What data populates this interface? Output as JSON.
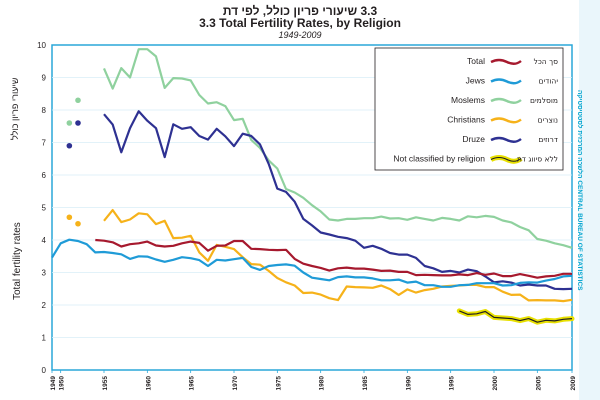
{
  "titles": {
    "hebrew": "3.3 שיעורי פריון כולל, לפי דת",
    "english": "3.3 Total Fertility Rates, by Religion",
    "years": "1949-2009"
  },
  "axis": {
    "ylabel_en": "Total fertility rates",
    "ylabel_he": "שיעורי פריון כולל"
  },
  "side_label": "הלשכה המרכזית לסטטיסטיקה CENTRAL BUREAU OF STATISTICS",
  "colors": {
    "Total": "#a6192e",
    "Jews": "#1f9bd7",
    "Moslems": "#8fd19e",
    "Christians": "#f6b21a",
    "Druze": "#2e3192",
    "Unclassified": "#e8e000",
    "frame": "#2aa7d9",
    "legend_border": "#231f20"
  },
  "legend_items": [
    {
      "en": "Total",
      "he": "סך הכל",
      "key": "Total"
    },
    {
      "en": "Jews",
      "he": "יהודים",
      "key": "Jews"
    },
    {
      "en": "Moslems",
      "he": "מוסלמים",
      "key": "Moslems"
    },
    {
      "en": "Christians",
      "he": "נוצרים",
      "key": "Christians"
    },
    {
      "en": "Druze",
      "he": "דרוזים",
      "key": "Druze"
    },
    {
      "en": "Not classified by religion",
      "he": "ללא סיווג דת",
      "key": "Unclassified"
    }
  ],
  "chart_data": {
    "type": "line",
    "title": "3.3 Total Fertility Rates, by Religion",
    "subtitle": "1949-2009",
    "xlabel": "",
    "ylabel": "Total fertility rates",
    "xlim": [
      1949,
      2009
    ],
    "ylim": [
      0,
      10
    ],
    "yticks": [
      0,
      1,
      2,
      3,
      4,
      5,
      6,
      7,
      8,
      9,
      10
    ],
    "xtick_labels": [
      "1949",
      "1950",
      "1955",
      "1960",
      "1965",
      "1970",
      "1975",
      "1980",
      "1985",
      "1990",
      "1995",
      "2000",
      "2005",
      "2009"
    ],
    "grid": true,
    "legend_position": "top-right",
    "series": [
      {
        "name": "Total",
        "key": "Total",
        "x": [
          1954,
          1955,
          1956,
          1957,
          1958,
          1959,
          1960,
          1961,
          1962,
          1963,
          1964,
          1965,
          1966,
          1967,
          1968,
          1969,
          1970,
          1971,
          1972,
          1973,
          1974,
          1975,
          1976,
          1977,
          1978,
          1979,
          1980,
          1981,
          1982,
          1983,
          1984,
          1985,
          1986,
          1987,
          1988,
          1989,
          1990,
          1991,
          1992,
          1993,
          1994,
          1995,
          1996,
          1997,
          1998,
          1999,
          2000,
          2001,
          2002,
          2003,
          2004,
          2005,
          2006,
          2007,
          2008,
          2009
        ],
        "y": [
          4.0,
          3.98,
          3.93,
          3.8,
          3.87,
          3.9,
          3.95,
          3.83,
          3.8,
          3.82,
          3.9,
          3.95,
          3.91,
          3.67,
          3.82,
          3.83,
          3.97,
          3.97,
          3.73,
          3.72,
          3.7,
          3.69,
          3.7,
          3.42,
          3.27,
          3.2,
          3.14,
          3.06,
          3.13,
          3.15,
          3.12,
          3.12,
          3.09,
          3.05,
          3.06,
          3.02,
          3.02,
          2.92,
          2.93,
          2.92,
          2.91,
          2.91,
          2.94,
          2.92,
          2.98,
          2.93,
          2.97,
          2.89,
          2.89,
          2.95,
          2.9,
          2.84,
          2.88,
          2.9,
          2.96,
          2.96
        ]
      },
      {
        "name": "Jews",
        "key": "Jews",
        "x": [
          1949,
          1950,
          1951,
          1952,
          1953,
          1954,
          1955,
          1956,
          1957,
          1958,
          1959,
          1960,
          1961,
          1962,
          1963,
          1964,
          1965,
          1966,
          1967,
          1968,
          1969,
          1970,
          1971,
          1972,
          1973,
          1974,
          1975,
          1976,
          1977,
          1978,
          1979,
          1980,
          1981,
          1982,
          1983,
          1984,
          1985,
          1986,
          1987,
          1988,
          1989,
          1990,
          1991,
          1992,
          1993,
          1994,
          1995,
          1996,
          1997,
          1998,
          1999,
          2000,
          2001,
          2002,
          2003,
          2004,
          2005,
          2006,
          2007,
          2008,
          2009
        ],
        "y": [
          3.46,
          3.9,
          4.01,
          3.97,
          3.87,
          3.62,
          3.63,
          3.6,
          3.56,
          3.42,
          3.5,
          3.49,
          3.4,
          3.33,
          3.39,
          3.47,
          3.44,
          3.38,
          3.2,
          3.39,
          3.37,
          3.41,
          3.45,
          3.17,
          3.08,
          3.2,
          3.23,
          3.25,
          3.21,
          3.0,
          2.84,
          2.8,
          2.76,
          2.86,
          2.88,
          2.85,
          2.85,
          2.82,
          2.76,
          2.76,
          2.78,
          2.69,
          2.72,
          2.61,
          2.61,
          2.56,
          2.56,
          2.61,
          2.62,
          2.67,
          2.67,
          2.67,
          2.6,
          2.61,
          2.68,
          2.7,
          2.69,
          2.75,
          2.8,
          2.88,
          2.9
        ]
      },
      {
        "name": "Moslems",
        "key": "Moslems",
        "x": [
          1955,
          1956,
          1957,
          1958,
          1959,
          1960,
          1961,
          1962,
          1963,
          1964,
          1965,
          1966,
          1967,
          1968,
          1969,
          1970,
          1971,
          1972,
          1973,
          1974,
          1975,
          1976,
          1977,
          1978,
          1979,
          1980,
          1981,
          1982,
          1983,
          1984,
          1985,
          1986,
          1987,
          1988,
          1989,
          1990,
          1991,
          1992,
          1993,
          1994,
          1995,
          1996,
          1997,
          1998,
          1999,
          2000,
          2001,
          2002,
          2003,
          2004,
          2005,
          2006,
          2007,
          2008,
          2009
        ],
        "y": [
          9.28,
          8.66,
          9.29,
          9.0,
          9.87,
          9.87,
          9.65,
          8.68,
          8.98,
          8.97,
          8.91,
          8.46,
          8.2,
          8.24,
          8.12,
          7.69,
          7.73,
          7.08,
          6.83,
          6.45,
          6.2,
          5.57,
          5.46,
          5.3,
          5.07,
          4.88,
          4.63,
          4.6,
          4.65,
          4.65,
          4.67,
          4.67,
          4.72,
          4.66,
          4.67,
          4.62,
          4.7,
          4.65,
          4.6,
          4.68,
          4.65,
          4.6,
          4.73,
          4.7,
          4.74,
          4.71,
          4.6,
          4.54,
          4.4,
          4.3,
          4.03,
          3.98,
          3.9,
          3.84,
          3.76
        ]
      },
      {
        "name": "Christians",
        "key": "Christians",
        "x": [
          1955,
          1956,
          1957,
          1958,
          1959,
          1960,
          1961,
          1962,
          1963,
          1964,
          1965,
          1966,
          1967,
          1968,
          1969,
          1970,
          1971,
          1972,
          1973,
          1974,
          1975,
          1976,
          1977,
          1978,
          1979,
          1980,
          1981,
          1982,
          1983,
          1984,
          1985,
          1986,
          1987,
          1988,
          1989,
          1990,
          1991,
          1992,
          1993,
          1994,
          1995,
          1996,
          1997,
          1998,
          1999,
          2000,
          2001,
          2002,
          2003,
          2004,
          2005,
          2006,
          2007,
          2008,
          2009
        ],
        "y": [
          4.59,
          4.92,
          4.55,
          4.63,
          4.82,
          4.79,
          4.49,
          4.59,
          4.06,
          4.07,
          4.13,
          3.62,
          3.36,
          3.85,
          3.79,
          3.72,
          3.47,
          3.26,
          3.24,
          3.05,
          2.83,
          2.7,
          2.6,
          2.37,
          2.38,
          2.32,
          2.21,
          2.15,
          2.57,
          2.55,
          2.54,
          2.53,
          2.6,
          2.49,
          2.31,
          2.48,
          2.38,
          2.46,
          2.5,
          2.57,
          2.59,
          2.6,
          2.62,
          2.62,
          2.55,
          2.55,
          2.41,
          2.31,
          2.32,
          2.14,
          2.15,
          2.14,
          2.14,
          2.12,
          2.16
        ]
      },
      {
        "name": "Druze",
        "key": "Druze",
        "x": [
          1955,
          1956,
          1957,
          1958,
          1959,
          1960,
          1961,
          1962,
          1963,
          1964,
          1965,
          1966,
          1967,
          1968,
          1969,
          1970,
          1971,
          1972,
          1973,
          1974,
          1975,
          1976,
          1977,
          1978,
          1979,
          1980,
          1981,
          1982,
          1983,
          1984,
          1985,
          1986,
          1987,
          1988,
          1989,
          1990,
          1991,
          1992,
          1993,
          1994,
          1995,
          1996,
          1997,
          1998,
          1999,
          2000,
          2001,
          2002,
          2003,
          2004,
          2005,
          2006,
          2007,
          2008,
          2009
        ],
        "y": [
          7.87,
          7.55,
          6.7,
          7.44,
          7.96,
          7.67,
          7.44,
          6.55,
          7.56,
          7.42,
          7.47,
          7.2,
          7.09,
          7.42,
          7.19,
          6.89,
          7.27,
          7.2,
          6.94,
          6.34,
          5.58,
          5.48,
          5.18,
          4.65,
          4.45,
          4.23,
          4.17,
          4.1,
          4.06,
          3.98,
          3.76,
          3.82,
          3.73,
          3.6,
          3.55,
          3.55,
          3.45,
          3.2,
          3.13,
          3.02,
          3.05,
          3.0,
          3.09,
          3.04,
          2.88,
          2.7,
          2.73,
          2.69,
          2.6,
          2.63,
          2.6,
          2.6,
          2.5,
          2.49,
          2.5
        ]
      },
      {
        "name": "Not classified by religion",
        "key": "Unclassified",
        "x": [
          1996,
          1997,
          1998,
          1999,
          2000,
          2001,
          2002,
          2003,
          2004,
          2005,
          2006,
          2007,
          2008,
          2009
        ],
        "y": [
          1.82,
          1.71,
          1.73,
          1.8,
          1.62,
          1.6,
          1.58,
          1.52,
          1.58,
          1.47,
          1.53,
          1.51,
          1.56,
          1.58
        ]
      }
    ],
    "early_points": [
      {
        "name": "Moslems",
        "key": "Moslems",
        "x": [
          1951,
          1952
        ],
        "y": [
          7.6,
          8.3
        ]
      },
      {
        "name": "Druze",
        "key": "Druze",
        "x": [
          1951,
          1952
        ],
        "y": [
          6.9,
          7.6
        ]
      },
      {
        "name": "Christians",
        "key": "Christians",
        "x": [
          1951,
          1952
        ],
        "y": [
          4.7,
          4.5
        ]
      }
    ]
  }
}
